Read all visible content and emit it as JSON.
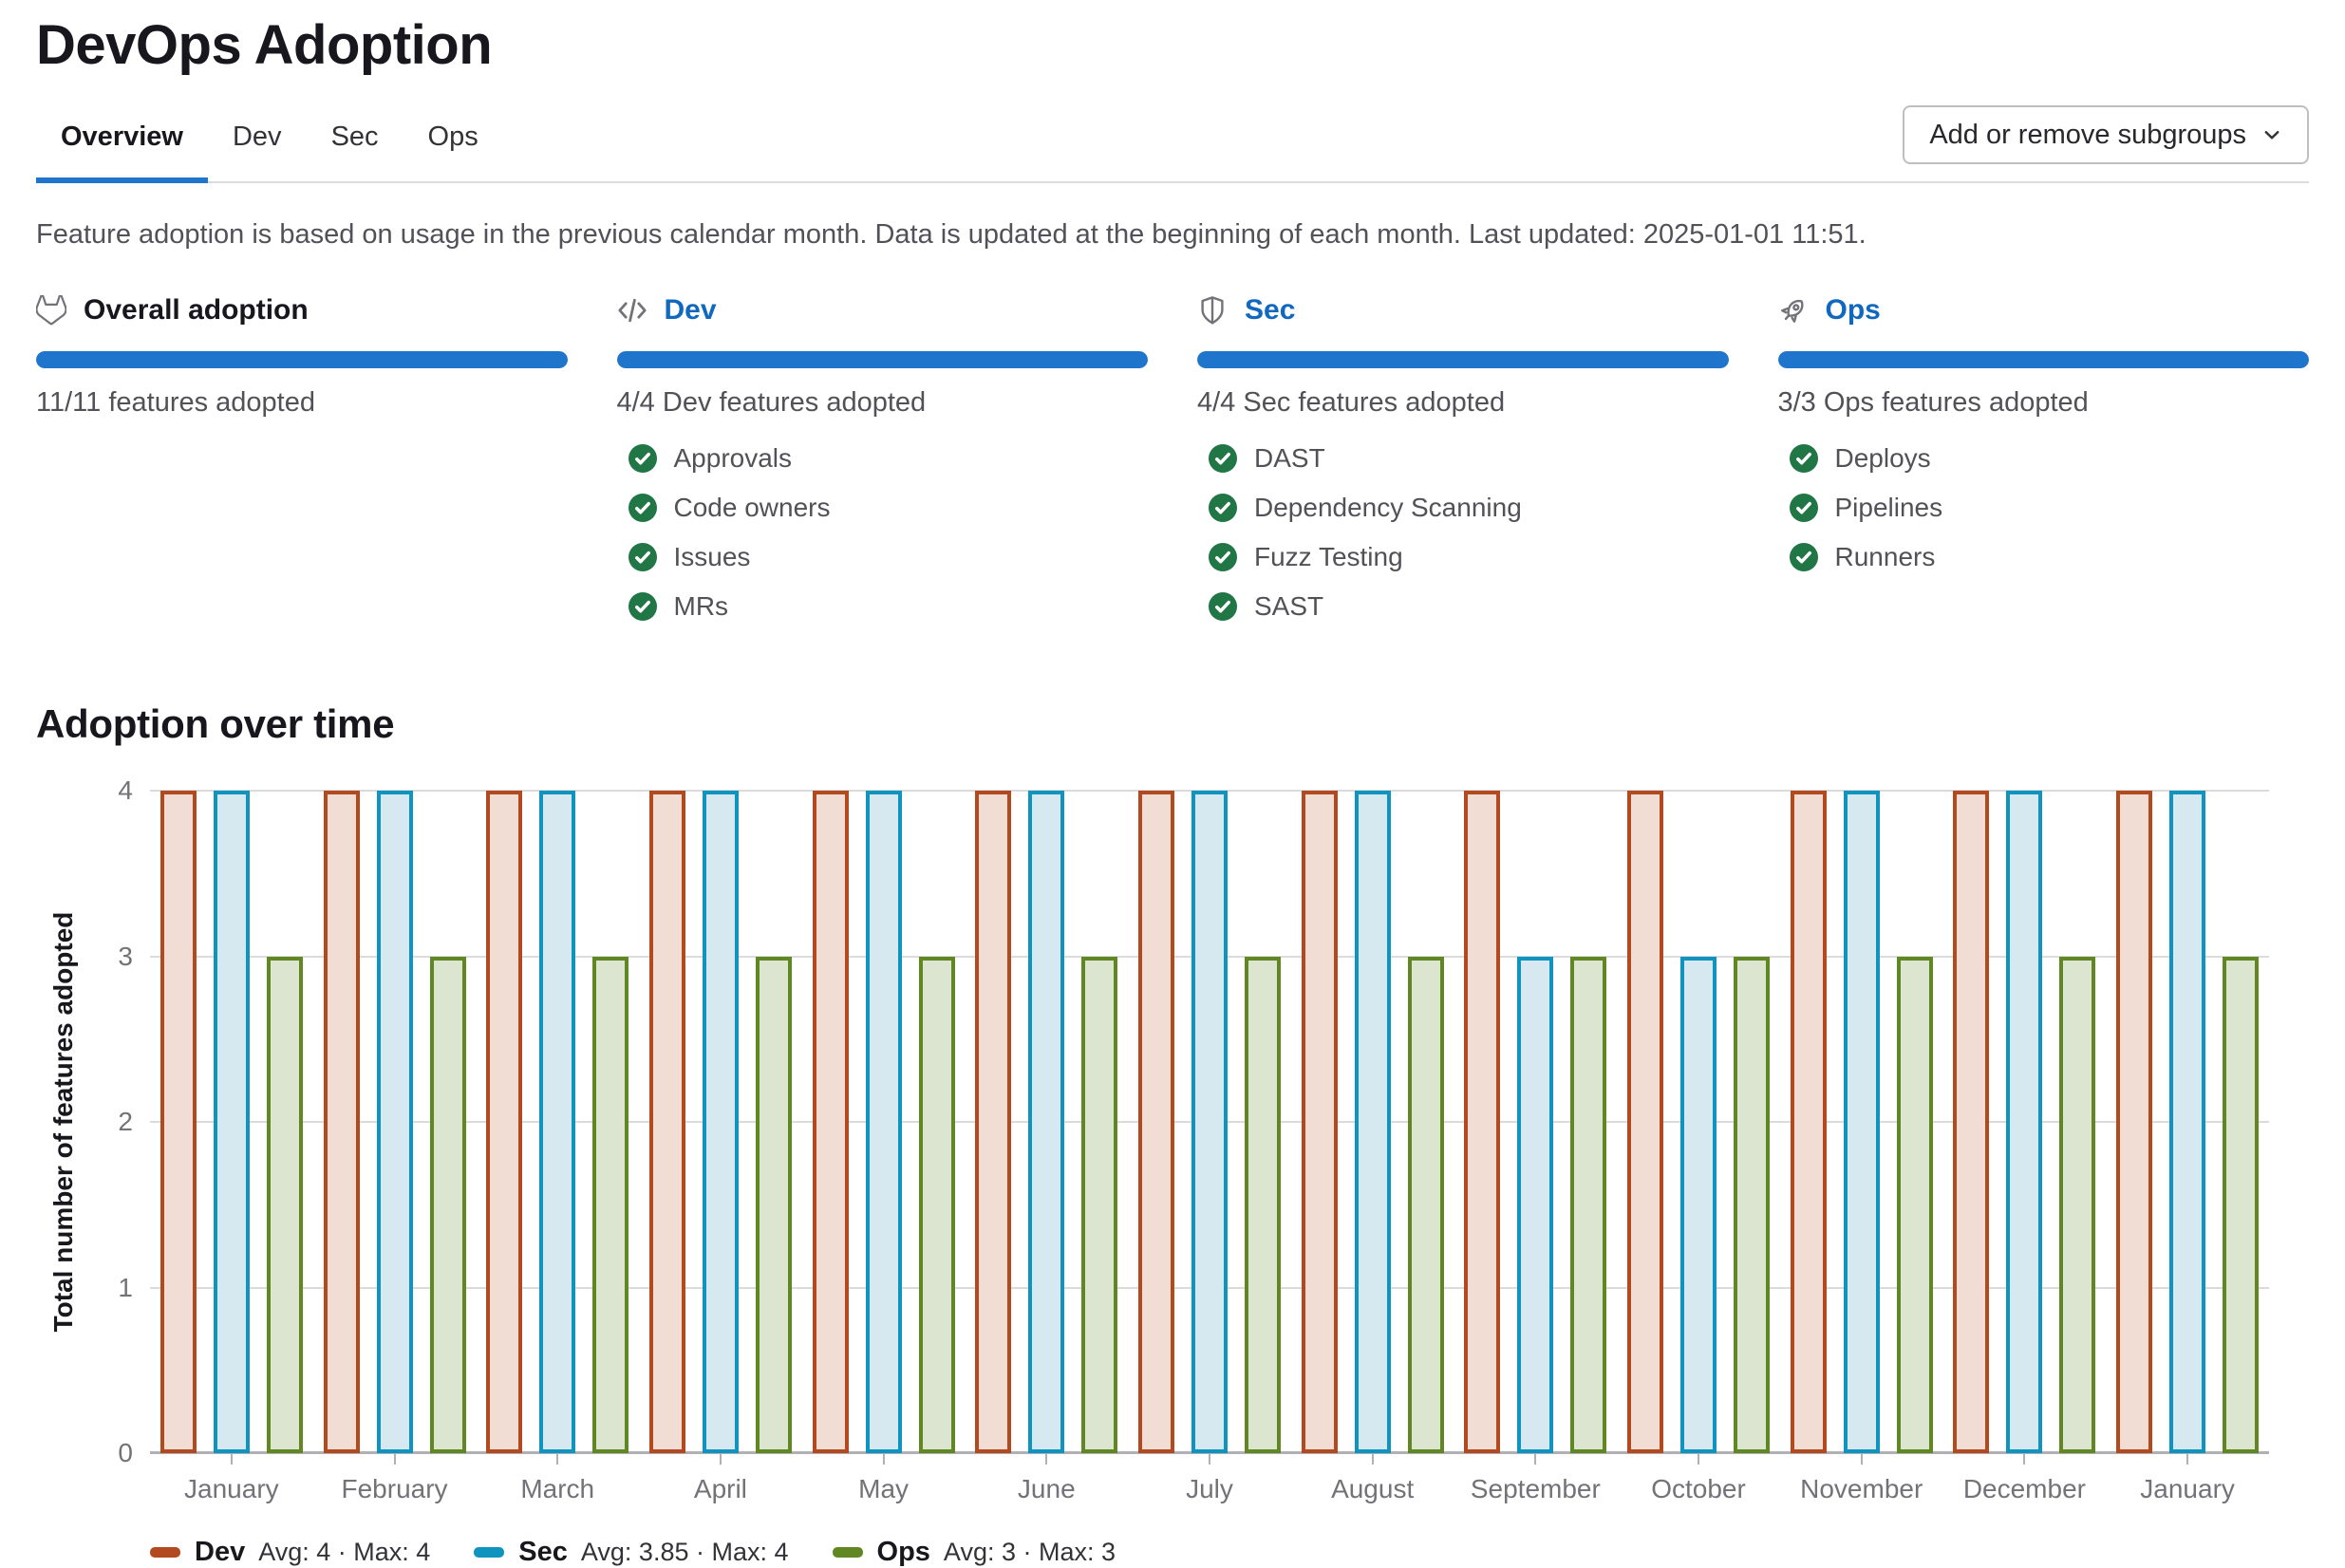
{
  "page": {
    "title": "DevOps Adoption"
  },
  "tabs": {
    "items": [
      {
        "label": "Overview",
        "active": true
      },
      {
        "label": "Dev",
        "active": false
      },
      {
        "label": "Sec",
        "active": false
      },
      {
        "label": "Ops",
        "active": false
      }
    ]
  },
  "toolbar": {
    "subgroups_button_label": "Add or remove subgroups"
  },
  "description": "Feature adoption is based on usage in the previous calendar month. Data is updated at the beginning of each month. Last updated: 2025-01-01 11:51.",
  "cards": [
    {
      "title": "Overall adoption",
      "icon": "tanuki-icon",
      "is_link": false,
      "progress_pct": 100,
      "summary": "11/11 features adopted",
      "features": []
    },
    {
      "title": "Dev",
      "icon": "code-icon",
      "is_link": true,
      "progress_pct": 100,
      "summary": "4/4 Dev features adopted",
      "features": [
        "Approvals",
        "Code owners",
        "Issues",
        "MRs"
      ]
    },
    {
      "title": "Sec",
      "icon": "shield-icon",
      "is_link": true,
      "progress_pct": 100,
      "summary": "4/4 Sec features adopted",
      "features": [
        "DAST",
        "Dependency Scanning",
        "Fuzz Testing",
        "SAST"
      ]
    },
    {
      "title": "Ops",
      "icon": "rocket-icon",
      "is_link": true,
      "progress_pct": 100,
      "summary": "3/3 Ops features adopted",
      "features": [
        "Deploys",
        "Pipelines",
        "Runners"
      ]
    }
  ],
  "section": {
    "title": "Adoption over time"
  },
  "chart_data": {
    "type": "bar",
    "title": "Adoption over time",
    "ylabel": "Total number of features adopted",
    "xlabel": "",
    "ylim": [
      0,
      4
    ],
    "yticks": [
      0,
      1,
      2,
      3,
      4
    ],
    "grid": true,
    "legend_position": "bottom-left",
    "categories": [
      "January",
      "February",
      "March",
      "April",
      "May",
      "June",
      "July",
      "August",
      "September",
      "October",
      "November",
      "December",
      "January"
    ],
    "series": [
      {
        "name": "Dev",
        "values": [
          4,
          4,
          4,
          4,
          4,
          4,
          4,
          4,
          4,
          4,
          4,
          4,
          4
        ],
        "avg": 4,
        "max": 4,
        "stats_label": "Avg: 4 · Max: 4",
        "border_color": "#b2491f",
        "fill_color": "#f1ddd3"
      },
      {
        "name": "Sec",
        "values": [
          4,
          4,
          4,
          4,
          4,
          4,
          4,
          4,
          3,
          3,
          4,
          4,
          4
        ],
        "avg": 3.85,
        "max": 4,
        "stats_label": "Avg: 3.85 · Max: 4",
        "border_color": "#0f94bf",
        "fill_color": "#d6e8f0"
      },
      {
        "name": "Ops",
        "values": [
          3,
          3,
          3,
          3,
          3,
          3,
          3,
          3,
          3,
          3,
          3,
          3,
          3
        ],
        "avg": 3,
        "max": 3,
        "stats_label": "Avg: 3 · Max: 3",
        "border_color": "#618722",
        "fill_color": "#dce5d0"
      }
    ]
  },
  "colors": {
    "accent_blue": "#1f75cb",
    "link_blue": "#1068bf",
    "check_green": "#217645",
    "text_primary": "#18171d",
    "text_secondary": "#535158"
  }
}
